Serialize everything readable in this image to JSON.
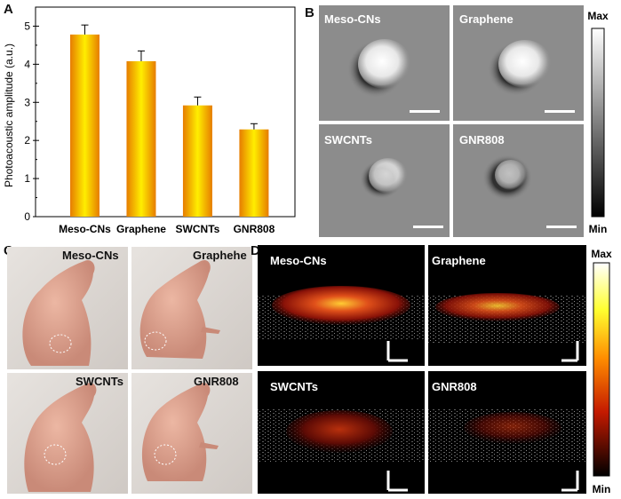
{
  "panels": {
    "a_letter": "A",
    "b_letter": "B",
    "c_letter": "C",
    "d_letter": "D"
  },
  "chart_data": {
    "type": "bar",
    "title": "",
    "xlabel": "",
    "ylabel": "Photoacoustic amplitude (a.u.)",
    "categories": [
      "Meso-CNs",
      "Graphene",
      "SWCNTs",
      "GNR808"
    ],
    "values": [
      4.78,
      4.08,
      2.92,
      2.29
    ],
    "errors": [
      0.25,
      0.27,
      0.22,
      0.15
    ],
    "yticks": [
      "0",
      "1",
      "2",
      "3",
      "4",
      "5"
    ],
    "ylim": [
      0,
      5.5
    ],
    "grid": false,
    "colors": {
      "bar_edge": "#f2a000",
      "bar_center": "#ffe400",
      "bar_dark": "#e36a00"
    }
  },
  "panel_b": {
    "images": [
      "Meso-CNs",
      "Graphene",
      "SWCNTs",
      "GNR808"
    ],
    "colorbar_max": "Max",
    "colorbar_min": "Min",
    "spot_intensity": [
      1.0,
      1.0,
      0.75,
      0.65
    ]
  },
  "panel_c": {
    "labels": [
      "Meso-CNs",
      "Graphehe",
      "SWCNTs",
      "GNR808"
    ]
  },
  "panel_d": {
    "images": [
      "Meso-CNs",
      "Graphene",
      "SWCNTs",
      "GNR808"
    ],
    "colorbar_max": "Max",
    "colorbar_min": "Min"
  }
}
